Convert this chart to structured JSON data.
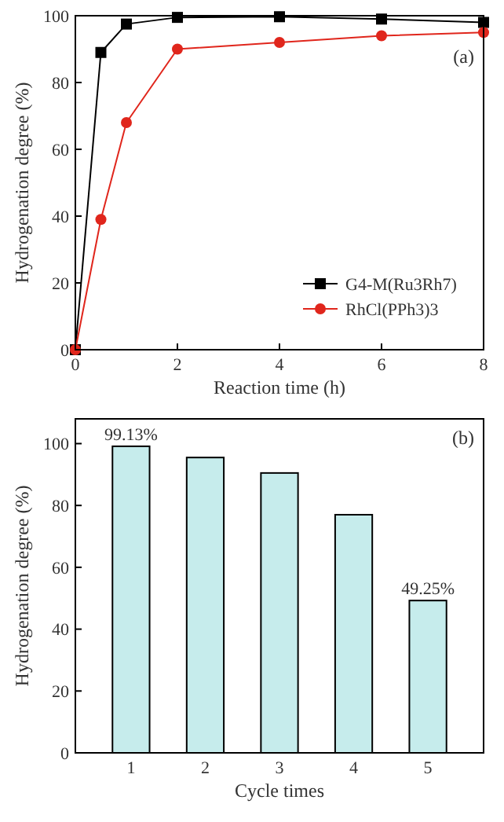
{
  "chart_data": [
    {
      "type": "line",
      "xlabel": "Reaction time (h)",
      "ylabel": "Hydrogenation degree (%)",
      "annotations": [
        "(a)"
      ],
      "xlim": [
        0,
        8
      ],
      "xticks": [
        0,
        2,
        4,
        6,
        8
      ],
      "ylim": [
        0,
        100
      ],
      "yticks": [
        0,
        20,
        40,
        60,
        80,
        100
      ],
      "legend": "bottom right",
      "grid": false,
      "line_style": "solid",
      "series": [
        {
          "name": "G4-M(Ru3Rh7)",
          "color": "#000000",
          "marker": "square",
          "x": [
            0,
            0.5,
            1,
            2,
            4,
            6,
            8
          ],
          "values": [
            0,
            89,
            97.5,
            99.5,
            99.7,
            99,
            98
          ]
        },
        {
          "name": "RhCl(PPh3)3",
          "color": "#e0261c",
          "marker": "circle",
          "x": [
            0,
            0.5,
            1,
            2,
            4,
            6,
            8
          ],
          "values": [
            0,
            39,
            68,
            90,
            92,
            94,
            95
          ]
        }
      ]
    },
    {
      "type": "bar",
      "xlabel": "Cycle times",
      "ylabel": "Hydrogenation degree (%)",
      "annotations": [
        "(b)"
      ],
      "categories": [
        "1",
        "2",
        "3",
        "4",
        "5"
      ],
      "values": [
        99.13,
        95.5,
        90.5,
        77,
        49.25
      ],
      "value_labels": [
        "99.13%",
        null,
        null,
        null,
        "49.25%"
      ],
      "color": "#c6ecec",
      "ylim": [
        0,
        108
      ],
      "yticks": [
        0,
        20,
        40,
        60,
        80,
        100
      ]
    }
  ]
}
